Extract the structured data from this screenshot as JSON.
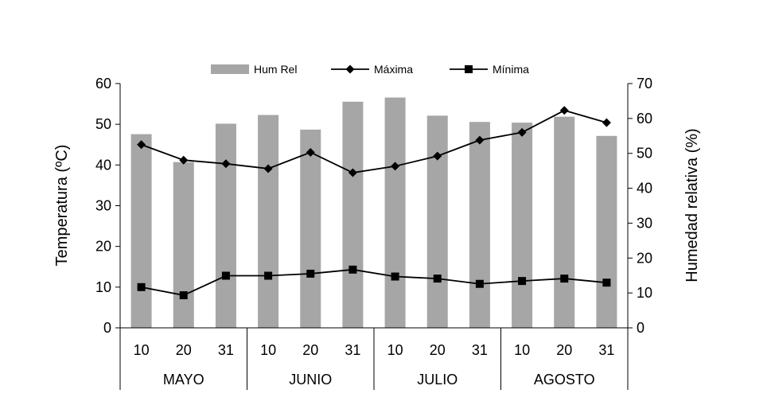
{
  "chart_data": {
    "type": "bar",
    "categories": [
      "10",
      "20",
      "31",
      "10",
      "20",
      "31",
      "10",
      "20",
      "31",
      "10",
      "20",
      "31"
    ],
    "groups": [
      {
        "label": "MAYO",
        "size": 3
      },
      {
        "label": "JUNIO",
        "size": 3
      },
      {
        "label": "JULIO",
        "size": 3
      },
      {
        "label": "AGOSTO",
        "size": 3
      }
    ],
    "series": [
      {
        "name": "Hum Rel",
        "kind": "bar",
        "axis": "right",
        "color": "#a6a6a6",
        "values": [
          55.5,
          47.5,
          58.5,
          61,
          56.8,
          64.8,
          66,
          60.8,
          59,
          58.8,
          60.5,
          55
        ]
      },
      {
        "name": "Máxima",
        "kind": "line",
        "axis": "left",
        "marker": "diamond",
        "color": "#000000",
        "values": [
          45,
          41.2,
          40.3,
          39.1,
          43.1,
          38.1,
          39.7,
          42.2,
          46.1,
          48,
          53.4,
          50.4
        ]
      },
      {
        "name": "Mínima",
        "kind": "line",
        "axis": "left",
        "marker": "square",
        "color": "#000000",
        "values": [
          10,
          8,
          12.8,
          12.8,
          13.3,
          14.3,
          12.6,
          12.1,
          10.8,
          11.5,
          12.1,
          11.1
        ]
      }
    ],
    "ylabel": "Temperatura (ºC)",
    "ylabel_right": "Humedad relativa (%)",
    "ylim": [
      0,
      60
    ],
    "ylim_right": [
      0,
      70
    ],
    "yticks": [
      0,
      10,
      20,
      30,
      40,
      50,
      60
    ],
    "yticks_right": [
      0,
      10,
      20,
      30,
      40,
      50,
      60,
      70
    ],
    "grid": false,
    "legend": "top-center"
  }
}
